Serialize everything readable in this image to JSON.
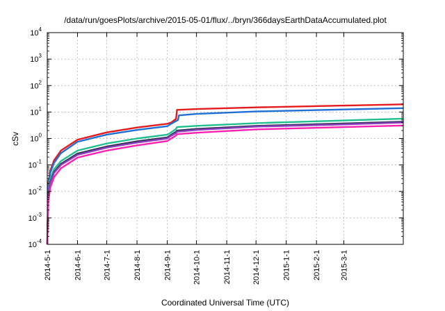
{
  "chart_data": {
    "type": "line",
    "title": "/data/run/goesPlots/archive/2015-05-01/flux/../bryn/366daysEarthDataAccumulated.plot",
    "xlabel": "Coordinated Universal Time (UTC)",
    "ylabel": "cSv",
    "yscale": "log",
    "ylim": [
      0.0001,
      10000
    ],
    "xlim": [
      "2014-05-01",
      "2015-05-01"
    ],
    "grid": true,
    "x_tick_labels": [
      "2014-5-1",
      "2014-6-1",
      "2014-7-1",
      "2014-8-1",
      "2014-9-1",
      "2014-10-1",
      "2014-11-1",
      "2014-12-1",
      "2015-1-1",
      "2015-2-1",
      "2015-3-1"
    ],
    "x_ticks": [
      "2014-05-01",
      "2014-06-01",
      "2014-07-01",
      "2014-08-01",
      "2014-09-01",
      "2014-10-01",
      "2014-11-01",
      "2014-12-01",
      "2015-01-01",
      "2015-02-01",
      "2015-03-01"
    ],
    "y_ticks": [
      {
        "value": 0.0001,
        "base": "10",
        "exp": "-4"
      },
      {
        "value": 0.001,
        "base": "10",
        "exp": "-3"
      },
      {
        "value": 0.01,
        "base": "10",
        "exp": "-2"
      },
      {
        "value": 0.1,
        "base": "10",
        "exp": "-1"
      },
      {
        "value": 1,
        "base": "10",
        "exp": "0"
      },
      {
        "value": 10,
        "base": "10",
        "exp": "1"
      },
      {
        "value": 100,
        "base": "10",
        "exp": "2"
      },
      {
        "value": 1000,
        "base": "10",
        "exp": "3"
      },
      {
        "value": 10000,
        "base": "10",
        "exp": "4"
      }
    ],
    "series": [
      {
        "color": "#e41a1c",
        "x": [
          "2014-05-01",
          "2014-05-02",
          "2014-05-04",
          "2014-05-08",
          "2014-05-15",
          "2014-06-01",
          "2014-07-01",
          "2014-08-01",
          "2014-09-01",
          "2014-09-05",
          "2014-09-10",
          "2014-09-11",
          "2014-10-01",
          "2014-12-01",
          "2015-03-01",
          "2015-05-01"
        ],
        "y": [
          0.0001,
          0.02,
          0.06,
          0.15,
          0.35,
          0.9,
          1.7,
          2.6,
          3.6,
          4.0,
          5.5,
          12.0,
          13.0,
          15.0,
          17.5,
          19.5
        ]
      },
      {
        "color": "#1f6fd6",
        "x": [
          "2014-05-01",
          "2014-05-02",
          "2014-05-04",
          "2014-05-08",
          "2014-05-15",
          "2014-06-01",
          "2014-07-01",
          "2014-08-01",
          "2014-09-01",
          "2014-09-05",
          "2014-09-12",
          "2014-09-13",
          "2014-10-01",
          "2014-12-01",
          "2015-03-01",
          "2015-05-01"
        ],
        "y": [
          0.0001,
          0.015,
          0.05,
          0.12,
          0.28,
          0.75,
          1.4,
          2.1,
          2.9,
          3.6,
          5.0,
          7.5,
          8.5,
          10.5,
          12.5,
          14.0
        ]
      },
      {
        "color": "#1fbf8f",
        "x": [
          "2014-05-01",
          "2014-05-02",
          "2014-05-04",
          "2014-05-08",
          "2014-05-15",
          "2014-06-01",
          "2014-07-01",
          "2014-08-01",
          "2014-09-01",
          "2014-09-04",
          "2014-09-10",
          "2014-09-11",
          "2014-10-01",
          "2014-12-01",
          "2015-03-01",
          "2015-05-01"
        ],
        "y": [
          0.0001,
          0.009,
          0.03,
          0.07,
          0.14,
          0.35,
          0.65,
          1.0,
          1.4,
          1.6,
          2.3,
          2.7,
          3.0,
          3.8,
          4.8,
          5.6
        ]
      },
      {
        "color": "#333355",
        "x": [
          "2014-05-01",
          "2014-05-02",
          "2014-05-04",
          "2014-05-08",
          "2014-05-15",
          "2014-06-01",
          "2014-07-01",
          "2014-08-01",
          "2014-09-01",
          "2014-09-04",
          "2014-09-10",
          "2014-09-11",
          "2014-10-01",
          "2014-12-01",
          "2015-03-01",
          "2015-05-01"
        ],
        "y": [
          0.0001,
          0.007,
          0.022,
          0.055,
          0.11,
          0.27,
          0.5,
          0.78,
          1.1,
          1.3,
          1.8,
          2.0,
          2.3,
          3.0,
          3.7,
          4.3
        ]
      },
      {
        "color": "#8c3fbf",
        "x": [
          "2014-05-01",
          "2014-05-02",
          "2014-05-04",
          "2014-05-08",
          "2014-05-15",
          "2014-06-01",
          "2014-07-01",
          "2014-08-01",
          "2014-09-01",
          "2014-09-04",
          "2014-09-10",
          "2014-09-11",
          "2014-10-01",
          "2014-12-01",
          "2015-03-01",
          "2015-05-01"
        ],
        "y": [
          0.0001,
          0.006,
          0.02,
          0.05,
          0.1,
          0.24,
          0.45,
          0.7,
          1.0,
          1.2,
          1.6,
          1.8,
          2.1,
          2.8,
          3.4,
          4.0
        ]
      },
      {
        "color": "#ff1fb0",
        "x": [
          "2014-05-01",
          "2014-05-02",
          "2014-05-04",
          "2014-05-08",
          "2014-05-15",
          "2014-06-01",
          "2014-07-01",
          "2014-08-01",
          "2014-09-01",
          "2014-09-04",
          "2014-09-10",
          "2014-09-11",
          "2014-10-01",
          "2014-12-01",
          "2015-03-01",
          "2015-05-01"
        ],
        "y": [
          0.0001,
          0.004,
          0.014,
          0.035,
          0.075,
          0.19,
          0.35,
          0.55,
          0.8,
          0.95,
          1.3,
          1.45,
          1.65,
          2.2,
          2.7,
          3.1
        ]
      }
    ]
  }
}
